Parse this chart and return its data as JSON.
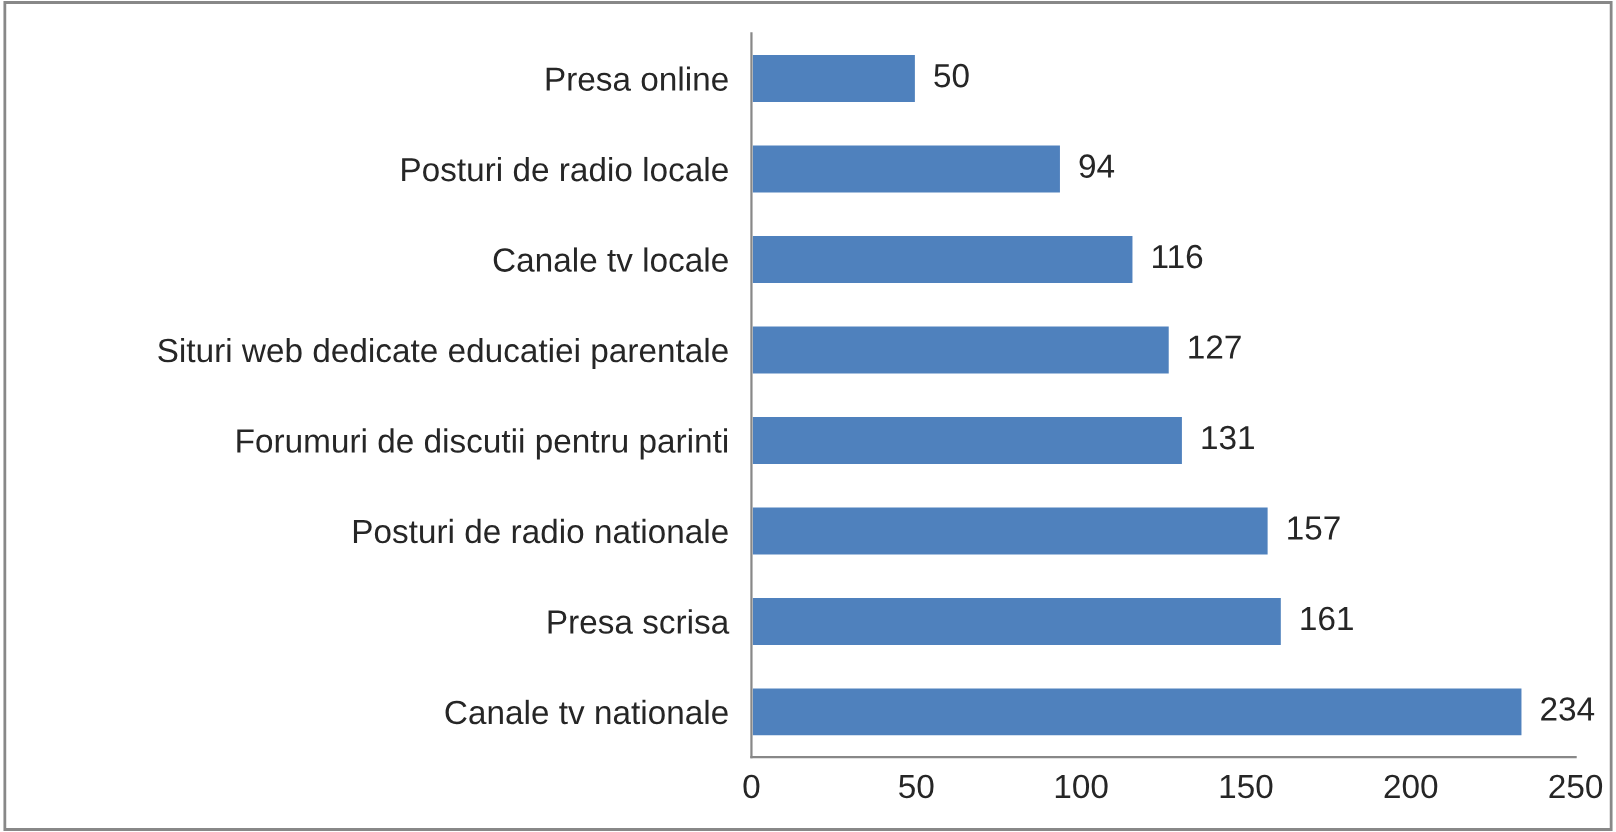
{
  "chart_data": {
    "type": "bar",
    "orientation": "horizontal",
    "categories": [
      "Presa online",
      "Posturi de radio locale",
      "Canale tv locale",
      "Situri web dedicate educatiei parentale",
      "Forumuri de discutii pentru parinti",
      "Posturi de radio nationale",
      "Presa scrisa",
      "Canale tv nationale"
    ],
    "values": [
      50,
      94,
      116,
      127,
      131,
      157,
      161,
      234
    ],
    "color": "#4f81bd",
    "xlim": [
      0,
      250
    ],
    "xticks": [
      0,
      50,
      100,
      150,
      200,
      250
    ],
    "data_labels": true,
    "grid": false,
    "legend": false
  }
}
